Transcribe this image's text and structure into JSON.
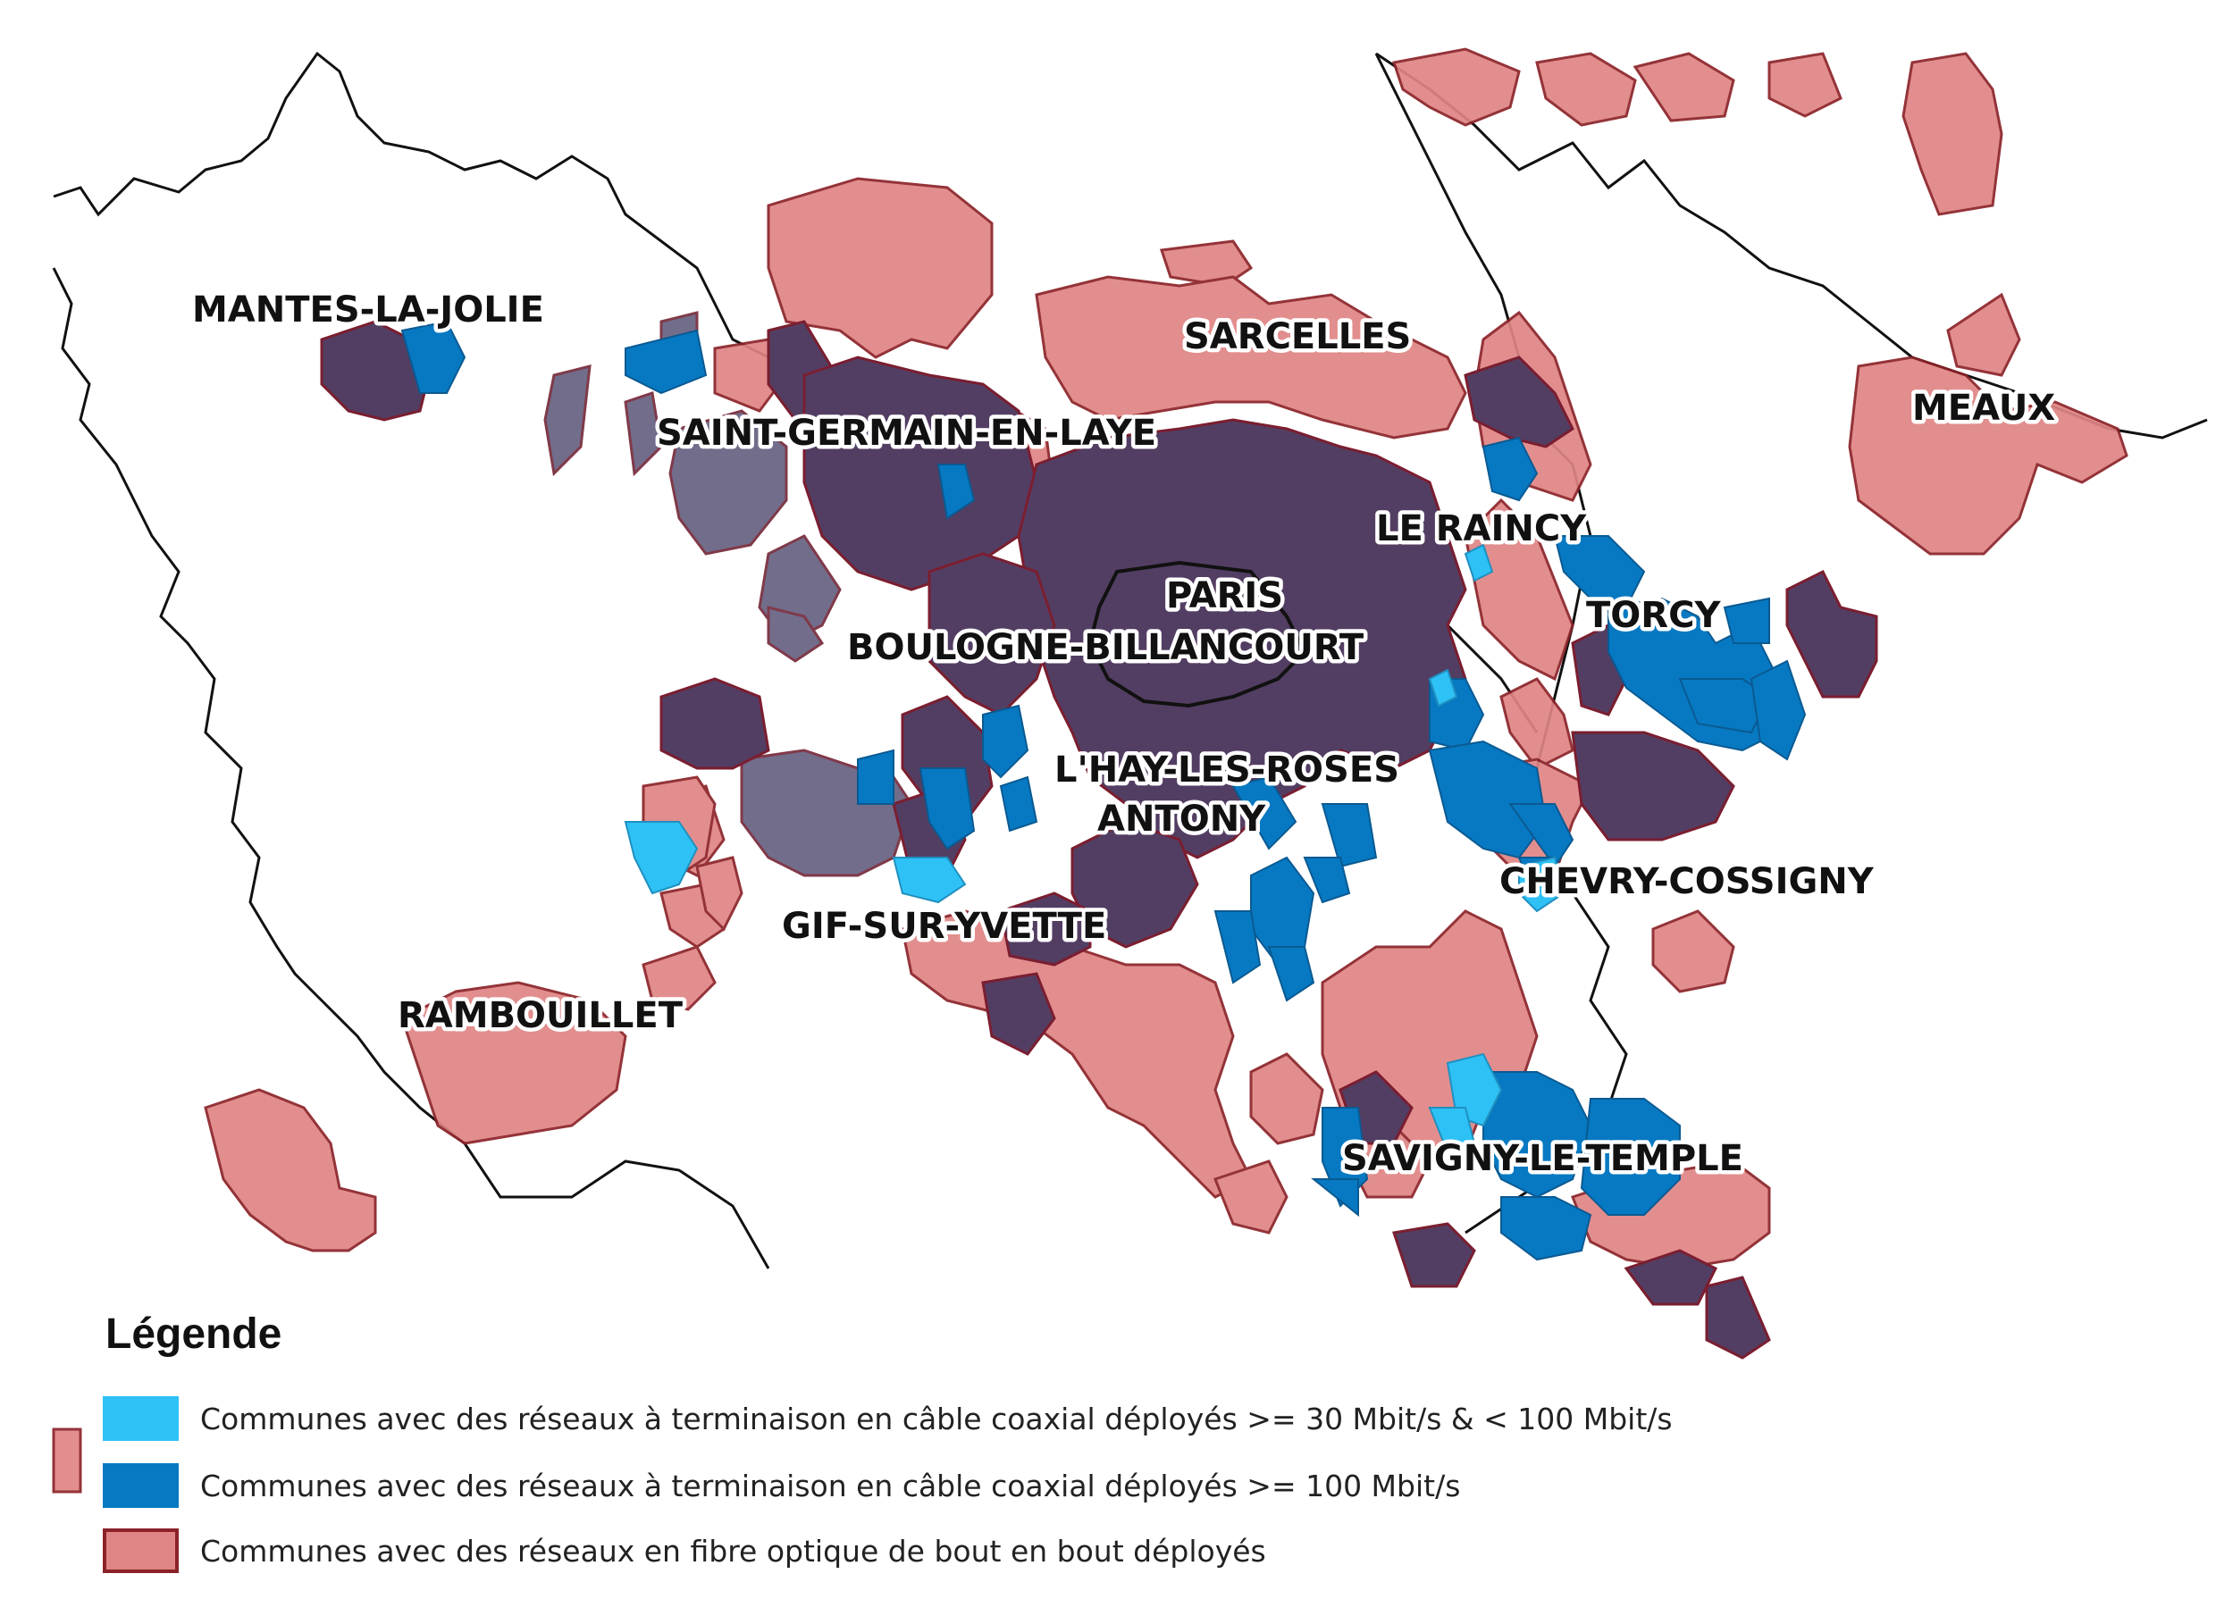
{
  "colors": {
    "coax_30_100": "#2ec1f5",
    "coax_100": "#0779c2",
    "fibre": "#e08585",
    "fibre_border": "#8b2228",
    "overlap_dark": "#533e63",
    "overlap_grey": "#6b6685",
    "boundary": "#111111"
  },
  "labels": {
    "mantes": "MANTES-LA-JOLIE",
    "sarcelles": "SARCELLES",
    "meaux": "MEAUX",
    "saint_germain": "SAINT-GERMAIN-EN-LAYE",
    "raincy": "LE RAINCY",
    "paris": "PARIS",
    "torcy": "TORCY",
    "boulogne": "BOULOGNE-BILLANCOURT",
    "lhay": "L'HAY-LES-ROSES",
    "antony": "ANTONY",
    "chevry": "CHEVRY-COSSIGNY",
    "gif": "GIF-SUR-YVETTE",
    "rambouillet": "RAMBOUILLET",
    "savigny": "SAVIGNY-LE-TEMPLE"
  },
  "legend": {
    "title": "Légende",
    "items": [
      {
        "label": "Communes avec des réseaux à terminaison en câble coaxial déployés >= 30 Mbit/s & < 100 Mbit/s"
      },
      {
        "label": "Communes avec des réseaux à terminaison en câble coaxial déployés >= 100 Mbit/s"
      },
      {
        "label": "Communes avec des réseaux en fibre optique de bout en bout déployés"
      }
    ]
  }
}
